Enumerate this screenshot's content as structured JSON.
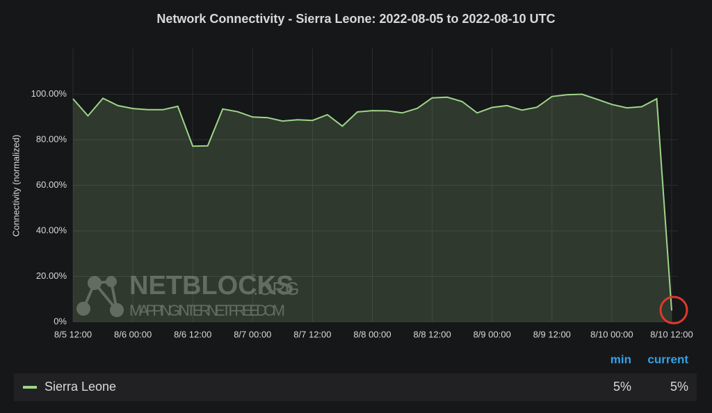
{
  "chart_data": {
    "type": "line",
    "title": "Network Connectivity - Sierra Leone: 2022-08-05 to 2022-08-10 UTC",
    "y_label": "Connectivity (normalized)",
    "x": [
      "8/5 12:00",
      "8/5 15:00",
      "8/5 18:00",
      "8/5 21:00",
      "8/6 00:00",
      "8/6 03:00",
      "8/6 06:00",
      "8/6 09:00",
      "8/6 12:00",
      "8/6 15:00",
      "8/6 18:00",
      "8/6 21:00",
      "8/7 00:00",
      "8/7 03:00",
      "8/7 06:00",
      "8/7 09:00",
      "8/7 12:00",
      "8/7 15:00",
      "8/7 18:00",
      "8/7 21:00",
      "8/8 00:00",
      "8/8 03:00",
      "8/8 06:00",
      "8/8 09:00",
      "8/8 12:00",
      "8/8 15:00",
      "8/8 18:00",
      "8/8 21:00",
      "8/9 00:00",
      "8/9 03:00",
      "8/9 06:00",
      "8/9 09:00",
      "8/9 12:00",
      "8/9 15:00",
      "8/9 18:00",
      "8/9 21:00",
      "8/10 00:00",
      "8/10 03:00",
      "8/10 06:00",
      "8/10 09:00",
      "8/10 12:00"
    ],
    "series": [
      {
        "name": "Sierra Leone",
        "color": "#9ed68a",
        "values": [
          98,
          90.5,
          98.2,
          95,
          93.7,
          93.2,
          93.2,
          94.7,
          77.2,
          77.3,
          93.5,
          92.3,
          90,
          89.7,
          88.2,
          88.8,
          88.5,
          91,
          86,
          92.2,
          92.8,
          92.7,
          91.8,
          93.8,
          98.4,
          98.7,
          96.8,
          91.8,
          94.2,
          95,
          93,
          94.3,
          99,
          99.8,
          100,
          97.8,
          95.5,
          94,
          94.5,
          98,
          5
        ]
      }
    ],
    "xlim": [
      "8/5 12:00",
      "8/10 12:00"
    ],
    "xticks": [
      "8/5 12:00",
      "8/6 00:00",
      "8/6 12:00",
      "8/7 00:00",
      "8/7 12:00",
      "8/8 00:00",
      "8/8 12:00",
      "8/9 00:00",
      "8/9 12:00",
      "8/10 00:00",
      "8/10 12:00"
    ],
    "ylim": [
      0,
      120
    ],
    "yticks": [
      {
        "value": 0,
        "label": "0%"
      },
      {
        "value": 20,
        "label": "20.00%"
      },
      {
        "value": 40,
        "label": "40.00%"
      },
      {
        "value": 60,
        "label": "60.00%"
      },
      {
        "value": 80,
        "label": "80.00%"
      },
      {
        "value": 100,
        "label": "100.00%"
      }
    ],
    "grid": true,
    "legend_stats": [
      {
        "name": "min",
        "value": "5%"
      },
      {
        "name": "current",
        "value": "5%"
      }
    ],
    "watermark": {
      "brand": "NETBLOCKS",
      "tm": "™",
      "domain": ".ORG",
      "tagline": "MAPPING INTERNET FREEDOM"
    }
  }
}
